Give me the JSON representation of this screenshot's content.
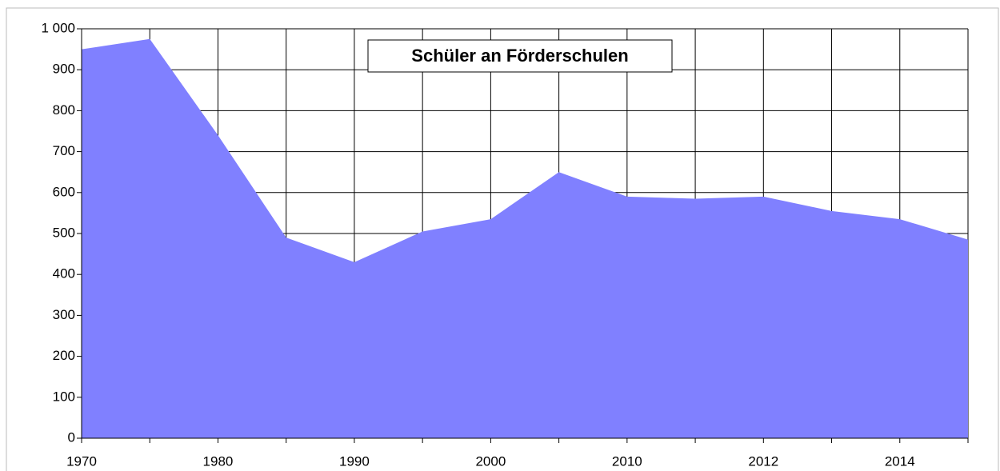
{
  "chart_data": {
    "type": "area",
    "title": "Schüler an Förderschulen",
    "categories": [
      "1970",
      null,
      "1980",
      null,
      "1990",
      null,
      "2000",
      null,
      "2010",
      null,
      "2012",
      null,
      "2014",
      null
    ],
    "values": [
      950,
      975,
      740,
      490,
      430,
      505,
      535,
      650,
      590,
      585,
      590,
      555,
      535,
      485
    ],
    "color": "#8080ff",
    "ylim": [
      0,
      1000
    ],
    "yticks": [
      0,
      100,
      200,
      300,
      400,
      500,
      600,
      700,
      800,
      900,
      {
        "value": 1000,
        "label": "1 000"
      }
    ],
    "grid": true
  }
}
